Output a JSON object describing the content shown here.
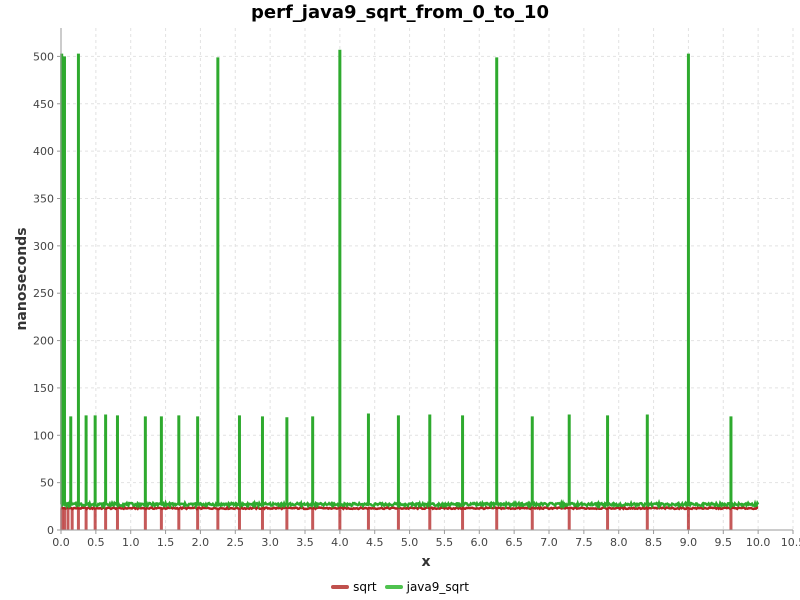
{
  "chart_data": {
    "type": "line",
    "title": "perf_java9_sqrt_from_0_to_10",
    "xlabel": "x",
    "ylabel": "nanoseconds",
    "xlim": [
      0,
      10.5
    ],
    "ylim": [
      0,
      530
    ],
    "x_ticks": [
      0.0,
      0.5,
      1.0,
      1.5,
      2.0,
      2.5,
      3.0,
      3.5,
      4.0,
      4.5,
      5.0,
      5.5,
      6.0,
      6.5,
      7.0,
      7.5,
      8.0,
      8.5,
      9.0,
      9.5,
      10.0,
      10.5
    ],
    "x_tick_labels": [
      "0.0",
      "0.5",
      "1.0",
      "1.5",
      "2.0",
      "2.5",
      "3.0",
      "3.5",
      "4.0",
      "4.5",
      "5.0",
      "5.5",
      "6.0",
      "6.5",
      "7.0",
      "7.5",
      "8.0",
      "8.5",
      "9.0",
      "9.5",
      "10.0",
      "10.5"
    ],
    "y_ticks": [
      0,
      50,
      100,
      150,
      200,
      250,
      300,
      350,
      400,
      450,
      500
    ],
    "y_tick_labels": [
      "0",
      "50",
      "100",
      "150",
      "200",
      "250",
      "300",
      "350",
      "400",
      "450",
      "500"
    ],
    "grid": true,
    "legend_position": "bottom-center",
    "series": [
      {
        "name": "sqrt",
        "color": "#b22222",
        "legend_color": "#c0504d",
        "baseline": 23,
        "x_range": [
          0,
          10
        ],
        "drops": [
          {
            "x": 0.01,
            "y": 0
          },
          {
            "x": 0.05,
            "y": 0
          },
          {
            "x": 0.1,
            "y": 0
          },
          {
            "x": 0.16,
            "y": 0
          },
          {
            "x": 0.25,
            "y": 0
          },
          {
            "x": 0.36,
            "y": 0
          },
          {
            "x": 0.49,
            "y": 0
          },
          {
            "x": 0.64,
            "y": 0
          },
          {
            "x": 0.81,
            "y": 0
          },
          {
            "x": 1.21,
            "y": 0
          },
          {
            "x": 1.44,
            "y": 0
          },
          {
            "x": 1.69,
            "y": 0
          },
          {
            "x": 1.96,
            "y": 0
          },
          {
            "x": 2.25,
            "y": 0
          },
          {
            "x": 2.56,
            "y": 0
          },
          {
            "x": 2.89,
            "y": 0
          },
          {
            "x": 3.24,
            "y": 0
          },
          {
            "x": 3.61,
            "y": 0
          },
          {
            "x": 4.0,
            "y": 0
          },
          {
            "x": 4.41,
            "y": 0
          },
          {
            "x": 4.84,
            "y": 0
          },
          {
            "x": 5.29,
            "y": 0
          },
          {
            "x": 5.76,
            "y": 0
          },
          {
            "x": 6.25,
            "y": 0
          },
          {
            "x": 6.76,
            "y": 0
          },
          {
            "x": 7.29,
            "y": 0
          },
          {
            "x": 7.84,
            "y": 0
          },
          {
            "x": 8.41,
            "y": 0
          },
          {
            "x": 9.0,
            "y": 0
          },
          {
            "x": 9.61,
            "y": 0
          }
        ]
      },
      {
        "name": "java9_sqrt",
        "color": "#2eaa2e",
        "legend_color": "#4fc24f",
        "baseline": 27,
        "x_range": [
          0,
          10
        ],
        "spikes": [
          {
            "x": 0.01,
            "y": 503
          },
          {
            "x": 0.05,
            "y": 500
          },
          {
            "x": 0.14,
            "y": 120
          },
          {
            "x": 0.25,
            "y": 503
          },
          {
            "x": 0.36,
            "y": 121
          },
          {
            "x": 0.49,
            "y": 121
          },
          {
            "x": 0.64,
            "y": 122
          },
          {
            "x": 0.81,
            "y": 121
          },
          {
            "x": 1.21,
            "y": 120
          },
          {
            "x": 1.44,
            "y": 120
          },
          {
            "x": 1.69,
            "y": 121
          },
          {
            "x": 1.96,
            "y": 120
          },
          {
            "x": 2.25,
            "y": 499
          },
          {
            "x": 2.56,
            "y": 121
          },
          {
            "x": 2.89,
            "y": 120
          },
          {
            "x": 3.24,
            "y": 119
          },
          {
            "x": 3.61,
            "y": 120
          },
          {
            "x": 4.0,
            "y": 507
          },
          {
            "x": 4.41,
            "y": 123
          },
          {
            "x": 4.84,
            "y": 121
          },
          {
            "x": 5.29,
            "y": 122
          },
          {
            "x": 5.76,
            "y": 121
          },
          {
            "x": 6.25,
            "y": 499
          },
          {
            "x": 6.76,
            "y": 120
          },
          {
            "x": 7.29,
            "y": 122
          },
          {
            "x": 7.84,
            "y": 121
          },
          {
            "x": 8.41,
            "y": 122
          },
          {
            "x": 9.0,
            "y": 503
          },
          {
            "x": 9.61,
            "y": 120
          }
        ]
      }
    ]
  }
}
